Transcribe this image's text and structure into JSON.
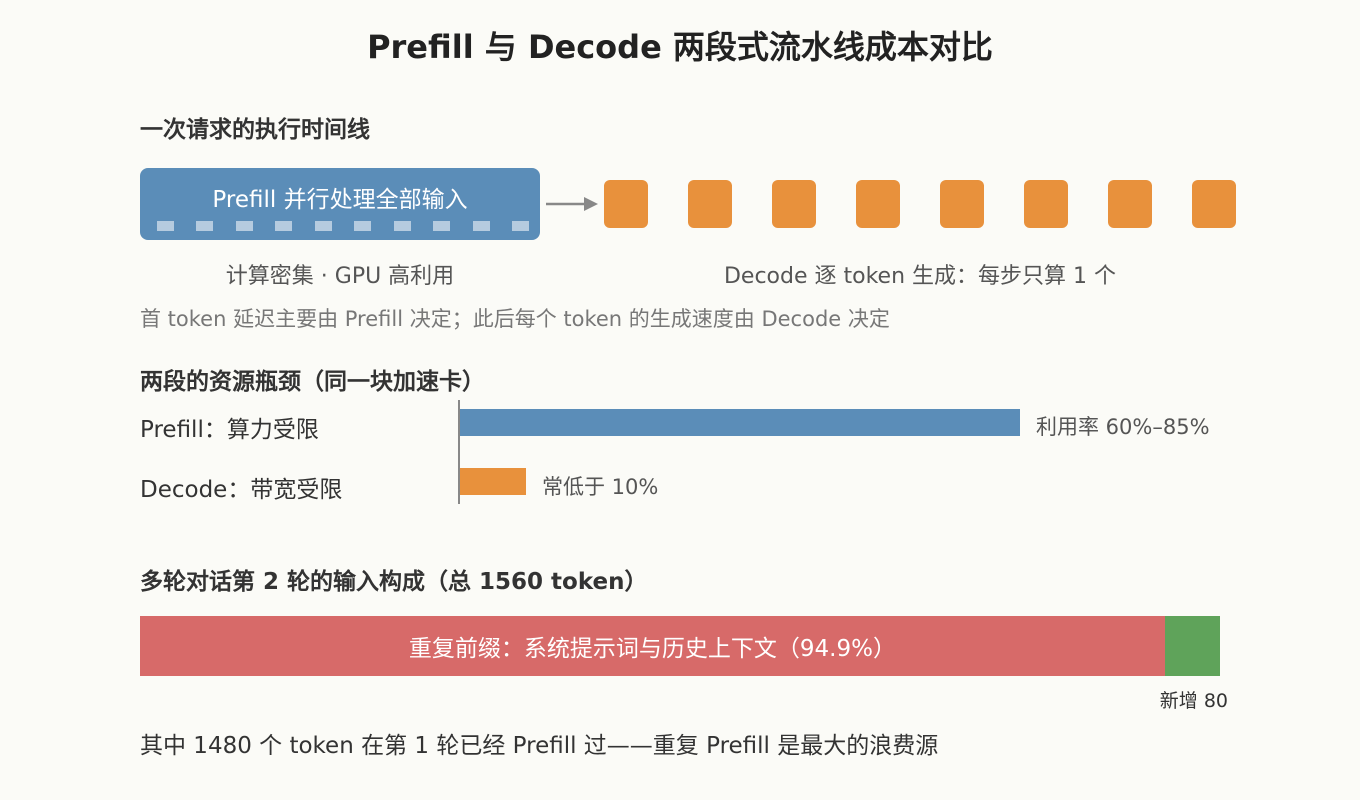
{
  "title": "Prefill 与 Decode 两段式流水线成本对比",
  "timeline": {
    "heading": "一次请求的执行时间线",
    "prefill_label": "Prefill 并行处理全部输入",
    "prefill_caption": "计算密集 · GPU 高利用",
    "decode_caption": "Decode 逐 token 生成：每步只算 1 个",
    "decode_token_count": 8,
    "note": "首 token 延迟主要由 Prefill 决定；此后每个 token 的生成速度由 Decode 决定",
    "colors": {
      "prefill": "#5b8db8",
      "decode": "#e8913c"
    }
  },
  "bottleneck": {
    "heading": "两段的资源瓶颈（同一块加速卡）",
    "rows": [
      {
        "label": "Prefill：算力受限",
        "note": "利用率 60%–85%"
      },
      {
        "label": "Decode：带宽受限",
        "note": "常低于 10%"
      }
    ]
  },
  "composition": {
    "heading": "多轮对话第 2 轮的输入构成（总 1560 token）",
    "repeated_label": "重复前缀：系统提示词与历史上下文（94.9%）",
    "repeated_tokens": 1480,
    "new_label": "新增 80",
    "new_tokens": 80,
    "colors": {
      "repeated": "#d76a69",
      "new": "#5fa35a"
    }
  },
  "footer": "其中 1480 个 token 在第 1 轮已经 Prefill 过——重复 Prefill 是最大的浪费源"
}
